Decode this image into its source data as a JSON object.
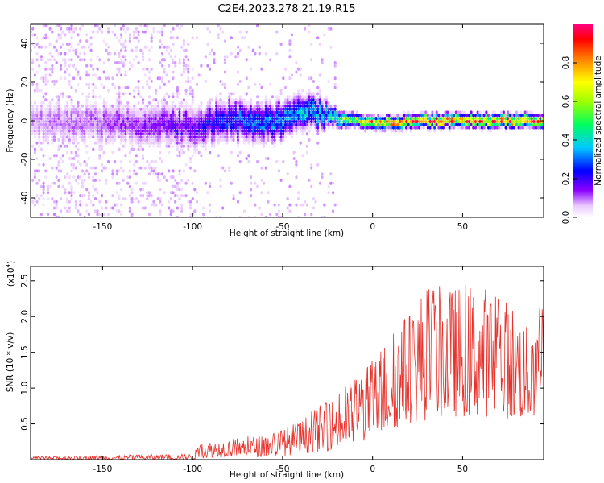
{
  "title": "C2E4.2023.278.21.19.R15",
  "chart_data": [
    {
      "type": "heatmap",
      "xlabel": "Height of straight line (km)",
      "ylabel": "Frequency (Hz)",
      "xlim": [
        -190,
        95
      ],
      "ylim": [
        -50,
        50
      ],
      "xticks": [
        -150,
        -100,
        -50,
        0,
        50
      ],
      "yticks": [
        -40,
        -20,
        0,
        20,
        40
      ],
      "colorbar": {
        "label": "Normalized spectral amplitude",
        "range": [
          0,
          1
        ],
        "ticks": [
          "0.0",
          "0.2",
          "0.4",
          "0.6",
          "0.8"
        ]
      },
      "ridge": {
        "x": [
          -190,
          -150,
          -100,
          -80,
          -60,
          -40,
          -30,
          -25,
          -20,
          -10,
          0,
          10,
          20,
          40,
          60,
          80,
          95
        ],
        "freq": [
          0,
          -1,
          -3,
          1,
          -2,
          3,
          4,
          3,
          1,
          0,
          -1,
          -1,
          0,
          0,
          0,
          0,
          0
        ],
        "half_width_hz": [
          10,
          10,
          10,
          9,
          9,
          8,
          7,
          5,
          4,
          3,
          3,
          3,
          3,
          3,
          3,
          3,
          3
        ],
        "peak_amplitude": [
          0.1,
          0.12,
          0.2,
          0.3,
          0.35,
          0.4,
          0.45,
          0.45,
          0.6,
          0.75,
          0.85,
          0.9,
          0.95,
          0.97,
          0.98,
          0.99,
          0.99
        ]
      }
    },
    {
      "type": "line",
      "xlabel": "Height of straight line (km)",
      "ylabel": "SNR (10 * v/v)",
      "y_multiplier": "(x10",
      "y_multiplier_exp": "4",
      "xlim": [
        -190,
        95
      ],
      "ylim": [
        0,
        2.7
      ],
      "xticks": [
        -150,
        -100,
        -50,
        0,
        50
      ],
      "yticks": [
        "0.5",
        "1.0",
        "1.5",
        "2.0",
        "2.5"
      ],
      "color": "#e8322c",
      "envelope": {
        "x": [
          -190,
          -150,
          -100,
          -95,
          -80,
          -60,
          -50,
          -40,
          -30,
          -20,
          -10,
          0,
          10,
          20,
          30,
          40,
          50,
          60,
          70,
          80,
          90,
          95
        ],
        "upper": [
          0.04,
          0.06,
          0.08,
          0.25,
          0.3,
          0.35,
          0.45,
          0.55,
          0.75,
          0.9,
          1.2,
          1.4,
          1.8,
          2.1,
          2.5,
          2.4,
          2.45,
          2.5,
          2.3,
          2.2,
          1.6,
          2.6
        ],
        "lower": [
          0.0,
          0.0,
          0.0,
          0.02,
          0.04,
          0.04,
          0.05,
          0.08,
          0.1,
          0.15,
          0.2,
          0.3,
          0.4,
          0.5,
          0.55,
          0.6,
          0.6,
          0.6,
          0.6,
          0.55,
          0.6,
          1.0
        ]
      }
    }
  ]
}
